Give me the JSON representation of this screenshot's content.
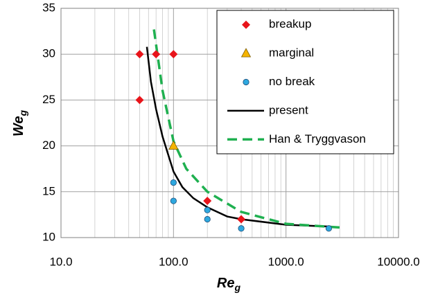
{
  "chart_data": {
    "type": "scatter",
    "x_label": "Re",
    "x_label_sub": "g",
    "y_label": "We",
    "y_label_sub": "g",
    "xscale": "log",
    "xlim": [
      10,
      10000
    ],
    "ylim": [
      10,
      35
    ],
    "xticks": [
      {
        "value": 10,
        "label": "10.0"
      },
      {
        "value": 100,
        "label": "100.0"
      },
      {
        "value": 1000,
        "label": "1000.0"
      },
      {
        "value": 10000,
        "label": "10000.0"
      }
    ],
    "yticks": [
      10,
      15,
      20,
      25,
      30,
      35
    ],
    "grid": true,
    "minor_grid": true,
    "legend": "upper right",
    "series": [
      {
        "name": "breakup",
        "mode": "markers",
        "marker": "diamond",
        "color": "#e8141a",
        "x": [
          50,
          70,
          100,
          50,
          200,
          400
        ],
        "values": [
          30,
          30,
          30,
          25,
          14,
          12
        ]
      },
      {
        "name": "marginal",
        "mode": "markers",
        "marker": "triangle",
        "color": "#f5b400",
        "x": [
          100
        ],
        "values": [
          20
        ]
      },
      {
        "name": "no break",
        "mode": "markers",
        "marker": "circle",
        "color": "#2ea8df",
        "x": [
          100,
          100,
          200,
          200,
          400,
          2400
        ],
        "values": [
          16,
          14,
          13,
          12,
          11,
          11
        ]
      },
      {
        "name": "present",
        "mode": "line",
        "dash": false,
        "color": "#000000",
        "x": [
          58,
          63,
          70,
          80,
          100,
          120,
          150,
          200,
          300,
          400,
          1000,
          2500
        ],
        "values": [
          30.8,
          27,
          24,
          21,
          17.2,
          15.5,
          14.3,
          13.3,
          12.3,
          12,
          11.4,
          11.2
        ]
      },
      {
        "name": "Han & Tryggvason",
        "mode": "line",
        "dash": true,
        "color": "#1fb050",
        "x": [
          67,
          80,
          100,
          130,
          200,
          400,
          1000,
          3000
        ],
        "values": [
          32.7,
          26,
          20.5,
          17.5,
          15,
          12.8,
          11.5,
          11.1
        ]
      }
    ]
  }
}
